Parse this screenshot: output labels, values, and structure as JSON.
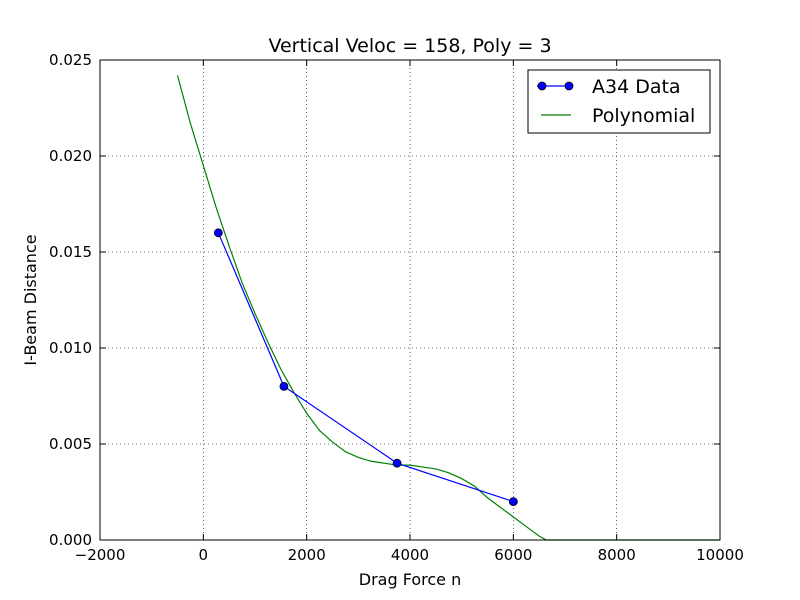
{
  "chart_data": {
    "type": "line",
    "title": "Vertical Veloc = 158, Poly = 3",
    "xlabel": "Drag Force n",
    "ylabel": "I-Beam Distance",
    "xlim": [
      -2000,
      10000
    ],
    "ylim": [
      0,
      0.025
    ],
    "x_ticks": [
      -2000,
      0,
      2000,
      4000,
      6000,
      8000,
      10000
    ],
    "x_tick_labels": [
      "−2000",
      "0",
      "2000",
      "4000",
      "6000",
      "8000",
      "10000"
    ],
    "y_ticks": [
      0,
      0.005,
      0.01,
      0.015,
      0.02,
      0.025
    ],
    "y_tick_labels": [
      "0.000",
      "0.005",
      "0.010",
      "0.015",
      "0.020",
      "0.025"
    ],
    "grid": true,
    "legend_position": "top-right",
    "series": [
      {
        "name": "A34 Data",
        "style": "line-markers",
        "color": "#0000ff",
        "x": [
          290,
          1560,
          3750,
          6000
        ],
        "y": [
          0.016,
          0.008,
          0.004,
          0.002
        ]
      },
      {
        "name": "Polynomial",
        "style": "line",
        "color": "#008000",
        "x": [
          -500,
          -250,
          0,
          250,
          500,
          750,
          1000,
          1250,
          1500,
          1750,
          2000,
          2250,
          2500,
          2750,
          3000,
          3250,
          3500,
          3750,
          4000,
          4250,
          4500,
          4750,
          5000,
          5250,
          5500,
          5750,
          6000,
          6250,
          6500,
          6640,
          7000,
          8000,
          9000,
          10000
        ],
        "y": [
          0.0242,
          0.0217,
          0.0195,
          0.0173,
          0.0153,
          0.0134,
          0.0118,
          0.0103,
          0.0089,
          0.0077,
          0.0066,
          0.0057,
          0.0051,
          0.0046,
          0.0043,
          0.0041,
          0.004,
          0.0039,
          0.0039,
          0.0038,
          0.0037,
          0.0035,
          0.0032,
          0.0028,
          0.0022,
          0.0017,
          0.0012,
          0.0007,
          0.0002,
          0.0,
          0.0,
          0.0,
          0.0,
          0.0
        ]
      }
    ]
  }
}
